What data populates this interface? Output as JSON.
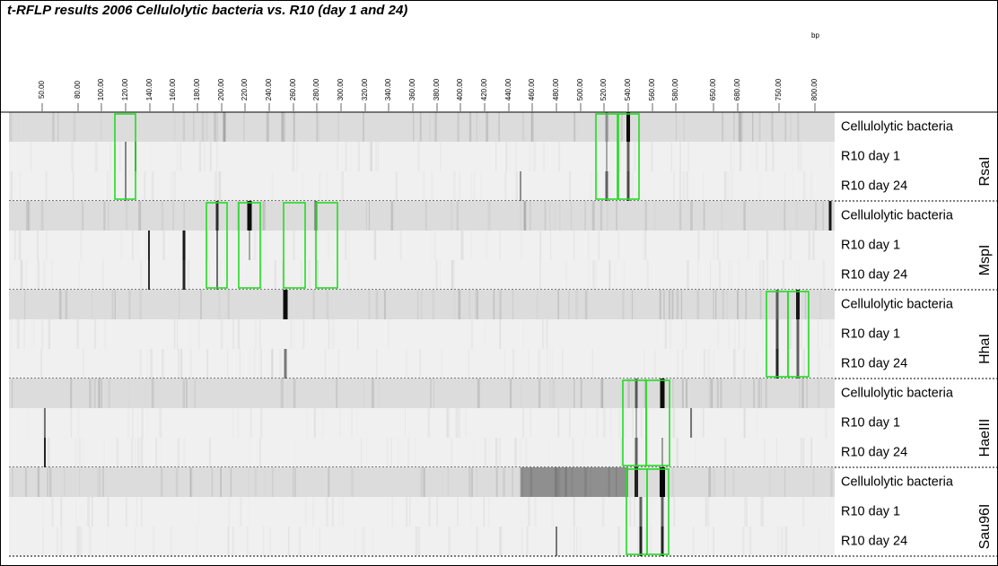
{
  "header": {
    "title": "t-RFLP results 2006 Cellulolytic bacteria vs. R10 (day 1 and 24)",
    "unit": "bp"
  },
  "scale": {
    "labels": [
      "50.00",
      "80.00",
      "100.00",
      "120.00",
      "140.00",
      "160.00",
      "180.00",
      "200.00",
      "220.00",
      "240.00",
      "260.00",
      "280.00",
      "300.00",
      "320.00",
      "340.00",
      "360.00",
      "380.00",
      "400.00",
      "420.00",
      "440.00",
      "460.00",
      "480.00",
      "500.00",
      "520.00",
      "540.00",
      "560.00",
      "580.00",
      "650.00",
      "680.00",
      "750.00",
      "800.00"
    ]
  },
  "groups": [
    {
      "enzyme": "RsaI",
      "lanes": [
        "Cellulolytic bacteria",
        "R10 day 1",
        "R10 day 24"
      ]
    },
    {
      "enzyme": "MspI",
      "lanes": [
        "Cellulolytic bacteria",
        "R10 day 1",
        "R10 day 24"
      ]
    },
    {
      "enzyme": "HhaI",
      "lanes": [
        "Cellulolytic bacteria",
        "R10 day 1",
        "R10 day 24"
      ]
    },
    {
      "enzyme": "HaeIII",
      "lanes": [
        "Cellulolytic bacteria",
        "R10 day 1",
        "R10 day 24"
      ]
    },
    {
      "enzyme": "Sau96I",
      "lanes": [
        "Cellulolytic bacteria",
        "R10 day 1",
        "R10 day 24"
      ]
    }
  ]
}
